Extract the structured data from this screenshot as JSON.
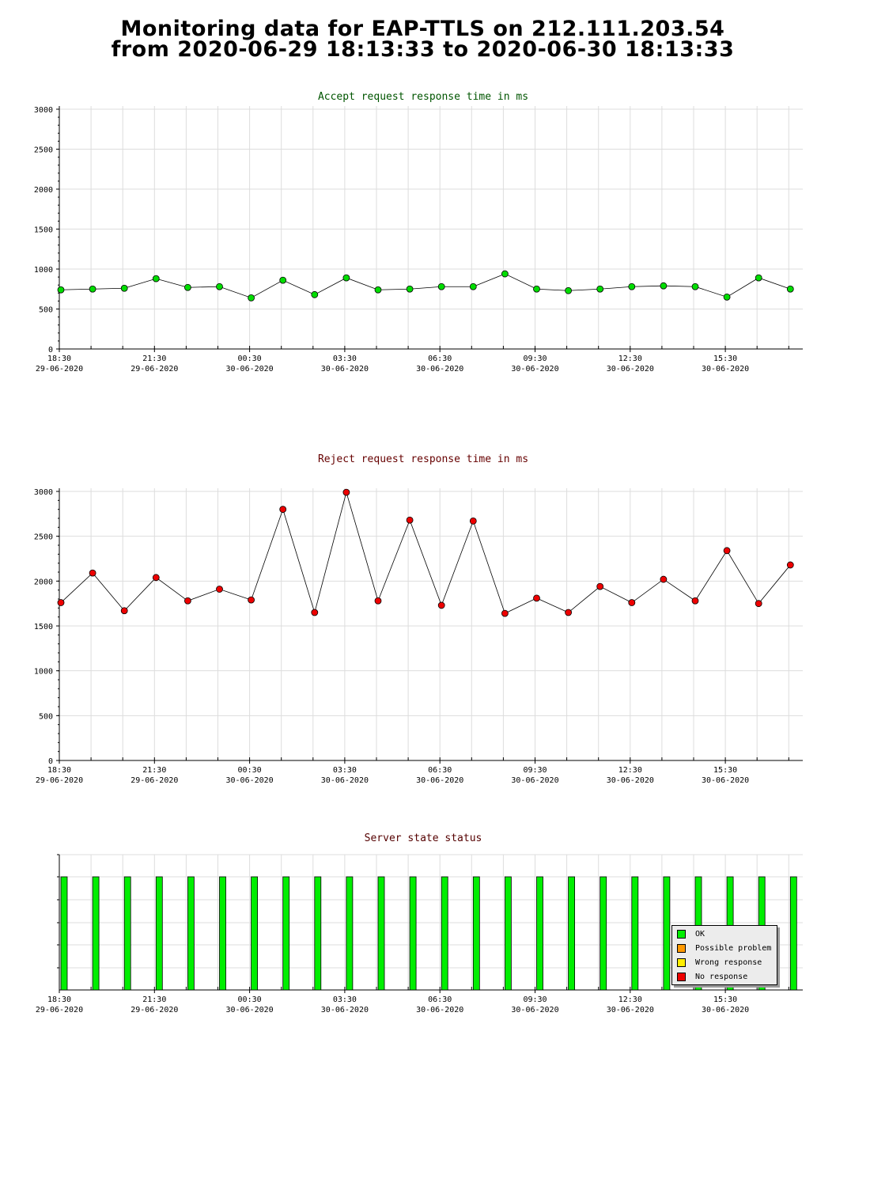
{
  "page": {
    "title_line1": "Monitoring data for EAP-TTLS on 212.111.203.54",
    "title_line2": "from 2020-06-29 18:13:33 to 2020-06-30 18:13:33"
  },
  "colors": {
    "accept": "#00dd00",
    "accept_title": "#005500",
    "reject": "#ee0000",
    "reject_title": "#660000",
    "status_title": "#550000",
    "grid": "#dddddd"
  },
  "x_ticks": [
    {
      "time": "18:30",
      "date": "29-06-2020"
    },
    {
      "time": "21:30",
      "date": "29-06-2020"
    },
    {
      "time": "00:30",
      "date": "30-06-2020"
    },
    {
      "time": "03:30",
      "date": "30-06-2020"
    },
    {
      "time": "06:30",
      "date": "30-06-2020"
    },
    {
      "time": "09:30",
      "date": "30-06-2020"
    },
    {
      "time": "12:30",
      "date": "30-06-2020"
    },
    {
      "time": "15:30",
      "date": "30-06-2020"
    }
  ],
  "chart_data": [
    {
      "type": "line",
      "title": "Accept request response time in ms",
      "ylim": [
        0,
        3000
      ],
      "yticks": [
        0,
        500,
        1000,
        1500,
        2000,
        2500,
        3000
      ],
      "grid": true,
      "series": [
        {
          "color": "#00dd00",
          "values": [
            740,
            750,
            760,
            880,
            770,
            780,
            640,
            860,
            680,
            890,
            740,
            750,
            780,
            780,
            940,
            750,
            730,
            750,
            780,
            790,
            780,
            650,
            890,
            750
          ]
        }
      ]
    },
    {
      "type": "line",
      "title": "Reject request response time in ms",
      "ylim": [
        0,
        3000
      ],
      "yticks": [
        0,
        500,
        1000,
        1500,
        2000,
        2500,
        3000
      ],
      "grid": true,
      "series": [
        {
          "color": "#ee0000",
          "values": [
            1760,
            2090,
            1670,
            2040,
            1780,
            1910,
            1790,
            2800,
            1650,
            2990,
            1780,
            2680,
            1730,
            2670,
            1640,
            1810,
            1650,
            1940,
            1760,
            2020,
            1780,
            2340,
            1750,
            2180
          ]
        }
      ]
    },
    {
      "type": "bar",
      "title": "Server state status",
      "grid": true,
      "legend_position": "bottom-right",
      "legend": [
        {
          "label": "OK",
          "color": "#00ee00"
        },
        {
          "label": "Possible problem",
          "color": "#ff9900"
        },
        {
          "label": "Wrong response",
          "color": "#ffee00"
        },
        {
          "label": "No response",
          "color": "#ee0000"
        }
      ],
      "series": [
        {
          "state": "OK",
          "values": [
            1,
            1,
            1,
            1,
            1,
            1,
            1,
            1,
            1,
            1,
            1,
            1,
            1,
            1,
            1,
            1,
            1,
            1,
            1,
            1,
            1,
            1,
            1,
            1
          ]
        }
      ]
    }
  ]
}
